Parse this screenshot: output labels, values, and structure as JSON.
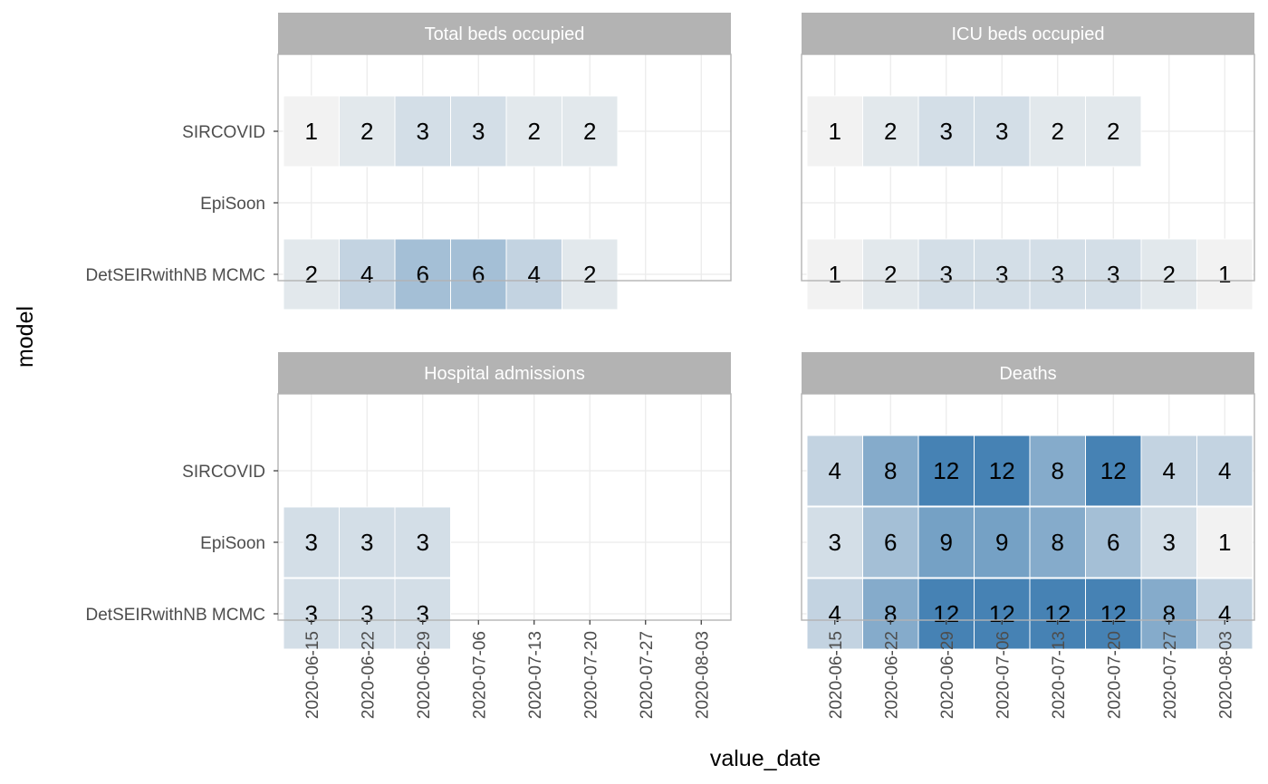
{
  "chart_data": {
    "type": "heatmap",
    "xlabel": "value_date",
    "ylabel": "model",
    "x": [
      "2020-06-15",
      "2020-06-22",
      "2020-06-29",
      "2020-07-06",
      "2020-07-13",
      "2020-07-20",
      "2020-07-27",
      "2020-08-03"
    ],
    "y": [
      "SIRCOVID",
      "EpiSoon",
      "DetSEIRwithNB MCMC"
    ],
    "color_scale": {
      "min": 1,
      "max": 12,
      "low": "#f2f2f2",
      "high": "#4682b4"
    },
    "grid": true,
    "panels": [
      {
        "title": "Total beds occupied",
        "values": [
          [
            1,
            2,
            3,
            3,
            2,
            2,
            null,
            null
          ],
          [
            null,
            null,
            null,
            null,
            null,
            null,
            null,
            null
          ],
          [
            2,
            4,
            6,
            6,
            4,
            2,
            null,
            null
          ]
        ]
      },
      {
        "title": "ICU beds occupied",
        "values": [
          [
            1,
            2,
            3,
            3,
            2,
            2,
            null,
            null
          ],
          [
            null,
            null,
            null,
            null,
            null,
            null,
            null,
            null
          ],
          [
            1,
            2,
            3,
            3,
            3,
            3,
            2,
            1
          ]
        ]
      },
      {
        "title": "Hospital admissions",
        "values": [
          [
            null,
            null,
            null,
            null,
            null,
            null,
            null,
            null
          ],
          [
            3,
            3,
            3,
            null,
            null,
            null,
            null,
            null
          ],
          [
            3,
            3,
            3,
            null,
            null,
            null,
            null,
            null
          ]
        ]
      },
      {
        "title": "Deaths",
        "values": [
          [
            4,
            8,
            12,
            12,
            8,
            12,
            4,
            4
          ],
          [
            3,
            6,
            9,
            9,
            8,
            6,
            3,
            1
          ],
          [
            4,
            8,
            12,
            12,
            12,
            12,
            8,
            4
          ]
        ]
      }
    ]
  }
}
